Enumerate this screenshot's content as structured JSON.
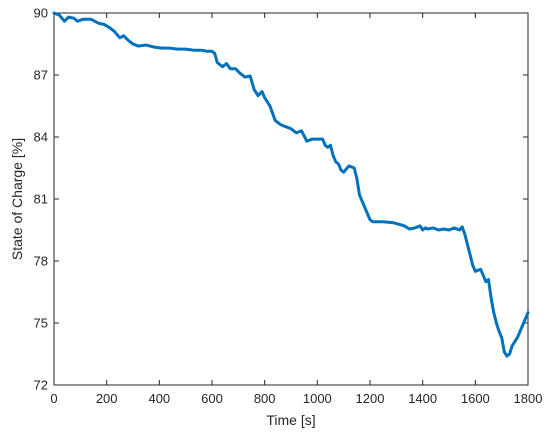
{
  "chart_data": {
    "type": "line",
    "title": "",
    "xlabel": "Time [s]",
    "ylabel": "State of Charge [%]",
    "xlim": [
      0,
      1800
    ],
    "ylim": [
      72,
      90
    ],
    "xticks": [
      0,
      200,
      400,
      600,
      800,
      1000,
      1200,
      1400,
      1600,
      1800
    ],
    "yticks": [
      72,
      75,
      78,
      81,
      84,
      87,
      90
    ],
    "grid": false,
    "box": true,
    "line_color": "#0072BD",
    "axis_color": "#262626",
    "series": [
      {
        "x": [
          0,
          20,
          40,
          55,
          75,
          90,
          110,
          140,
          170,
          190,
          210,
          230,
          250,
          265,
          280,
          300,
          320,
          350,
          380,
          410,
          440,
          470,
          500,
          530,
          560,
          580,
          600,
          610,
          620,
          640,
          655,
          670,
          690,
          705,
          725,
          745,
          760,
          775,
          790,
          800,
          820,
          840,
          860,
          880,
          900,
          920,
          940,
          960,
          980,
          1000,
          1020,
          1030,
          1040,
          1050,
          1060,
          1070,
          1080,
          1090,
          1100,
          1120,
          1140,
          1150,
          1160,
          1180,
          1200,
          1210,
          1250,
          1290,
          1330,
          1350,
          1370,
          1390,
          1400,
          1410,
          1420,
          1440,
          1460,
          1480,
          1500,
          1520,
          1530,
          1540,
          1550,
          1560,
          1570,
          1580,
          1590,
          1600,
          1610,
          1620,
          1630,
          1640,
          1650,
          1660,
          1670,
          1680,
          1690,
          1700,
          1710,
          1720,
          1730,
          1740,
          1760,
          1780,
          1800
        ],
        "y": [
          90,
          89.9,
          89.6,
          89.8,
          89.75,
          89.6,
          89.7,
          89.7,
          89.5,
          89.45,
          89.3,
          89.1,
          88.8,
          88.9,
          88.7,
          88.5,
          88.4,
          88.45,
          88.35,
          88.3,
          88.3,
          88.25,
          88.25,
          88.2,
          88.2,
          88.15,
          88.15,
          88.05,
          87.6,
          87.4,
          87.55,
          87.3,
          87.3,
          87.1,
          86.9,
          86.95,
          86.3,
          86.0,
          86.2,
          85.9,
          85.5,
          84.8,
          84.6,
          84.5,
          84.4,
          84.2,
          84.3,
          83.8,
          83.9,
          83.9,
          83.9,
          83.6,
          83.5,
          83.6,
          83.1,
          82.8,
          82.7,
          82.4,
          82.3,
          82.6,
          82.5,
          82.0,
          81.2,
          80.6,
          80.0,
          79.9,
          79.9,
          79.85,
          79.7,
          79.55,
          79.6,
          79.7,
          79.5,
          79.6,
          79.55,
          79.6,
          79.5,
          79.55,
          79.5,
          79.6,
          79.55,
          79.5,
          79.65,
          79.3,
          78.8,
          78.3,
          77.8,
          77.5,
          77.55,
          77.6,
          77.3,
          77.0,
          77.1,
          76.2,
          75.5,
          75.0,
          74.6,
          74.3,
          73.6,
          73.4,
          73.5,
          73.9,
          74.3,
          74.9,
          75.5
        ]
      }
    ]
  }
}
